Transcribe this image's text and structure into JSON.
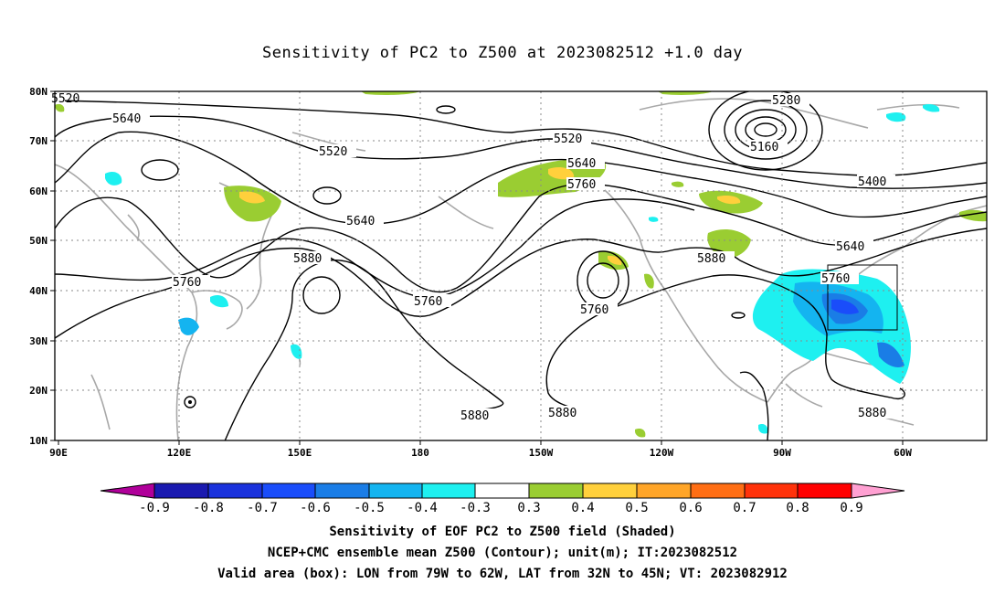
{
  "title": "Sensitivity of PC2 to Z500 at 2023082512 +1.0 day",
  "map": {
    "lat_labels": [
      "80N",
      "70N",
      "60N",
      "50N",
      "40N",
      "30N",
      "20N",
      "10N"
    ],
    "lon_labels": [
      "90E",
      "120E",
      "150E",
      "180",
      "150W",
      "120W",
      "90W",
      "60W"
    ],
    "contour_labels": [
      "5520",
      "5640",
      "5520",
      "5640",
      "5760",
      "5880",
      "5760",
      "5520",
      "5640",
      "5760",
      "5760",
      "5880",
      "5280",
      "5160",
      "5400",
      "5640",
      "5760",
      "5880",
      "5880",
      "5880"
    ],
    "valid_box": {
      "lon_min": "79W",
      "lon_max": "62W",
      "lat_min": "32N",
      "lat_max": "45N"
    }
  },
  "colorbar": {
    "labels": [
      "-0.9",
      "-0.8",
      "-0.7",
      "-0.6",
      "-0.5",
      "-0.4",
      "-0.3",
      "0.3",
      "0.4",
      "0.5",
      "0.6",
      "0.7",
      "0.8",
      "0.9"
    ],
    "colors": [
      "#b0009a",
      "#1a1ab0",
      "#1a32dc",
      "#1a4dfa",
      "#1a7de6",
      "#14b4f0",
      "#1ef0f0",
      "#ffffff",
      "#9acd32",
      "#ffd03c",
      "#ffa528",
      "#ff6e14",
      "#ff320a",
      "#ff0000",
      "#ffa0d2"
    ]
  },
  "captions": [
    "Sensitivity of EOF PC2 to Z500 field (Shaded)",
    "NCEP+CMC ensemble mean Z500 (Contour); unit(m); IT:2023082512",
    "Valid area (box): LON from 79W to 62W, LAT from 32N to 45N; VT: 2023082912"
  ]
}
